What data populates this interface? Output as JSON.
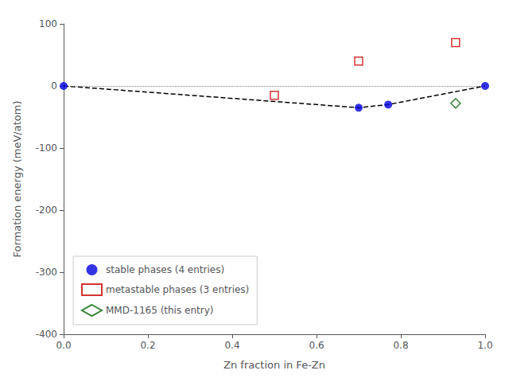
{
  "chart_data": {
    "type": "scatter",
    "xlabel": "Zn fraction in Fe-Zn",
    "ylabel": "Formation energy (meV/atom)",
    "xlim": [
      0.0,
      1.0
    ],
    "ylim": [
      -400,
      100
    ],
    "xticks": [
      {
        "value": 0.0,
        "label": "0.0"
      },
      0.2,
      0.4,
      0.6,
      0.8,
      {
        "value": 1.0,
        "label": "1.0"
      }
    ],
    "yticks": [
      -400,
      -300,
      -200,
      -100,
      0,
      100
    ],
    "grid": false,
    "legend": "lower left",
    "series": [
      {
        "type": "hline",
        "values": [
          0
        ],
        "color": "#808080",
        "line_style": "dotted"
      },
      {
        "type": "line",
        "x": [
          0.0,
          0.7,
          0.77,
          1.0
        ],
        "values": [
          0.0,
          -35.0,
          -30.0,
          0.0
        ],
        "color": "#000000",
        "line_style": "dashed"
      },
      {
        "type": "scatter",
        "name": "stable phases (4 entries)",
        "x": [
          0.0,
          0.7,
          0.77,
          1.0
        ],
        "values": [
          0.0,
          -35.0,
          -30.0,
          0.0
        ],
        "color": "#0000dd",
        "marker": "circle"
      },
      {
        "type": "scatter",
        "name": "metastable phases (3 entries)",
        "x": [
          0.5,
          0.7,
          0.93
        ],
        "values": [
          -15.0,
          40.0,
          70.0
        ],
        "color": "#cc0000",
        "marker": "square-open"
      },
      {
        "type": "scatter",
        "name": "MMD-1165 (this entry)",
        "x": [
          0.93
        ],
        "values": [
          -28.0
        ],
        "color": "#006600",
        "marker": "diamond-open"
      }
    ]
  }
}
